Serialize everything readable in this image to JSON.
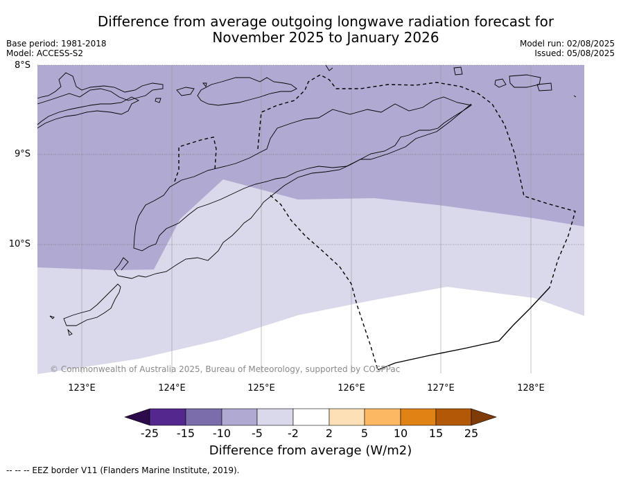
{
  "title_line1": "Difference from average outgoing longwave radiation forecast for",
  "title_line2": "November 2025 to January 2026",
  "base_period": "Base period: 1981-2018",
  "model": "Model: ACCESS-S2",
  "model_run": "Model run: 02/08/2025",
  "issued": "Issued: 05/08/2025",
  "lat_labels": [
    "8°S",
    "9°S",
    "10°S"
  ],
  "lon_labels": [
    "123°E",
    "124°E",
    "125°E",
    "126°E",
    "127°E",
    "128°E"
  ],
  "copyright": "© Commonwealth of Australia 2025, Bureau of Meteorology, supported by COSPPac",
  "colorbar": {
    "title": "Difference from average (W/m2)",
    "ticks": [
      "-25",
      "-15",
      "-10",
      "-5",
      "-2",
      "2",
      "5",
      "10",
      "15",
      "25"
    ],
    "colors": [
      "#2d0a4a",
      "#54278f",
      "#7b6dac",
      "#b0aad2",
      "#d9d9eb",
      "#ffffff",
      "#fde0b6",
      "#fdb863",
      "#e08214",
      "#b35806",
      "#7f3b08"
    ]
  },
  "legend_footnote": "--  --  -- EEZ border V11 (Flanders Marine Institute, 2019).",
  "fill_colors": {
    "band_minus10_minus5": "#b0aad2",
    "band_minus5_minus2": "#d9d9eb",
    "band_neutral": "#ffffff"
  }
}
